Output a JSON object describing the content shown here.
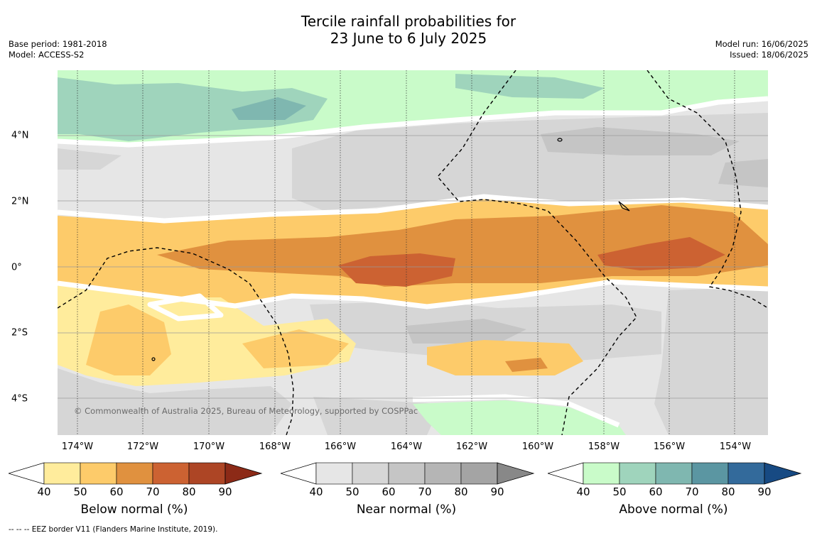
{
  "header": {
    "title_line1": "Tercile rainfall probabilities for",
    "title_line2": "23 June to 6 July 2025",
    "base_period": "Base period: 1981-2018",
    "model": "Model: ACCESS-S2",
    "model_run": "Model run: 16/06/2025",
    "issued": "Issued: 18/06/2025"
  },
  "map": {
    "x_ticks": [
      "174°W",
      "172°W",
      "170°W",
      "168°W",
      "166°W",
      "164°W",
      "162°W",
      "160°W",
      "158°W",
      "156°W",
      "154°W"
    ],
    "y_ticks": [
      "4°N",
      "2°N",
      "0°",
      "2°S",
      "4°S"
    ],
    "copyright": "© Commonwealth of Australia 2025, Bureau of Meteorology, supported by COSPPac"
  },
  "colorbars": [
    {
      "label": "Below normal (%)",
      "ticks": [
        "40",
        "50",
        "60",
        "70",
        "80",
        "90"
      ],
      "colors": [
        "#ffffff",
        "#ffec9c",
        "#fdcb6a",
        "#e0913f",
        "#cc6232",
        "#ad4525",
        "#8c2a17"
      ]
    },
    {
      "label": "Near normal (%)",
      "ticks": [
        "40",
        "50",
        "60",
        "70",
        "80",
        "90"
      ],
      "colors": [
        "#ffffff",
        "#e6e6e6",
        "#d6d6d6",
        "#c5c5c5",
        "#b5b5b5",
        "#a4a4a4",
        "#888888"
      ]
    },
    {
      "label": "Above normal (%)",
      "ticks": [
        "40",
        "50",
        "60",
        "70",
        "80",
        "90"
      ],
      "colors": [
        "#ffffff",
        "#c9fbc9",
        "#9fd4bc",
        "#7fb7b0",
        "#5b96a2",
        "#336a9b",
        "#174a83"
      ]
    }
  ],
  "footer": {
    "eez_note": "--  --  -- EEZ border V11 (Flanders Marine Institute, 2019)."
  }
}
